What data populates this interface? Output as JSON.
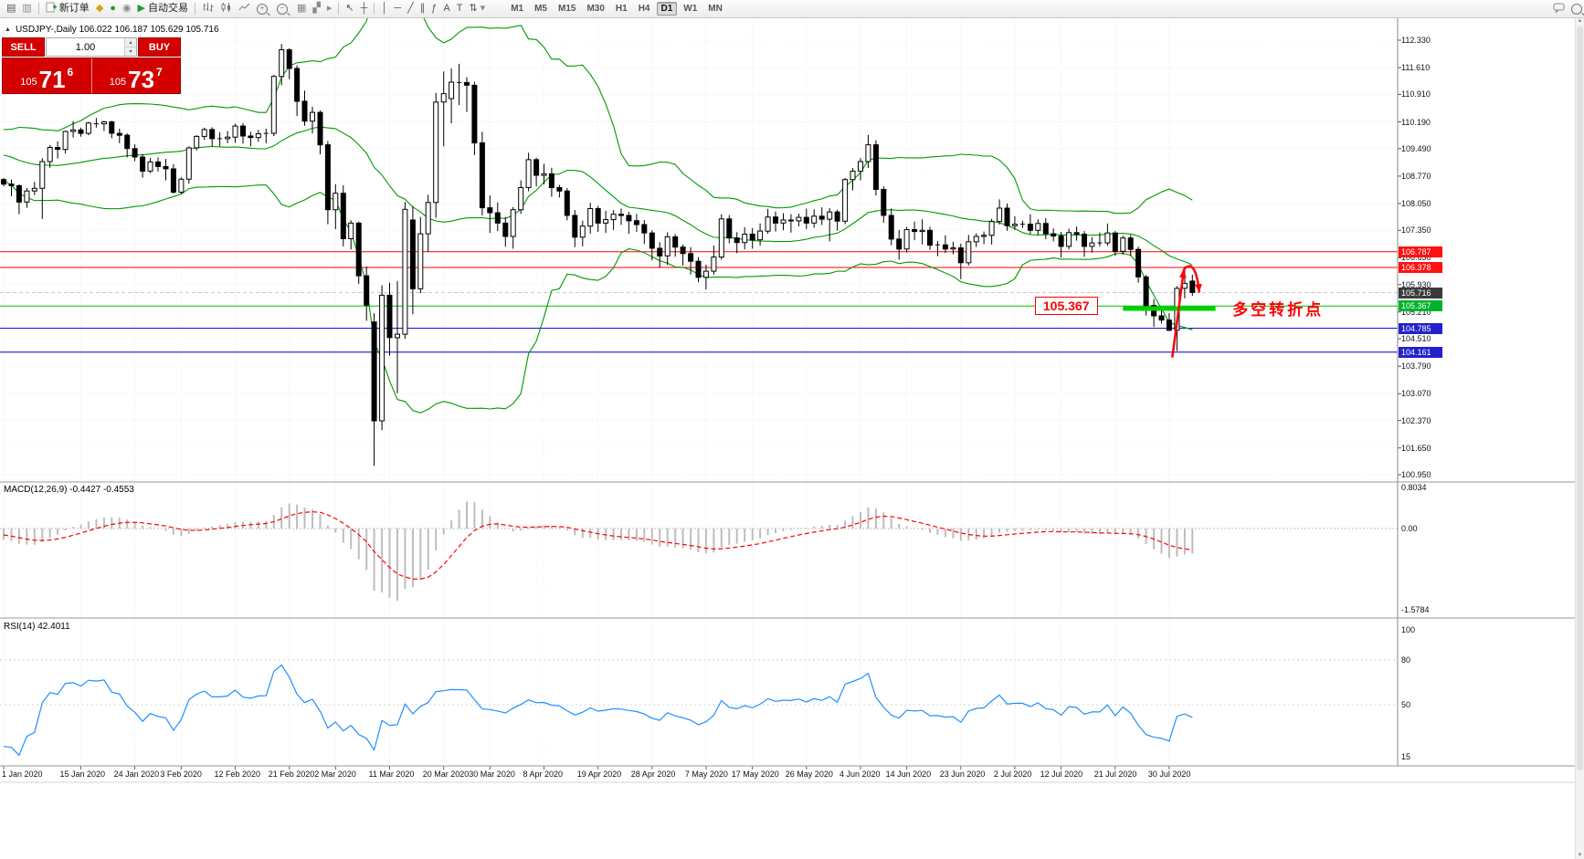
{
  "colors": {
    "bollinger": "#009900",
    "grid": "#ececec",
    "macd_hist": "#bdbdbd",
    "macd_signal": "#ff0000",
    "rsi_line": "#1e90ff",
    "panel_red": "#d40000",
    "down_candle": "#000000",
    "up_candle": "#ffffff"
  },
  "toolbar": {
    "new_order_label": "新订单",
    "auto_trading_label": "自动交易",
    "timeframes": [
      "M1",
      "M5",
      "M15",
      "M30",
      "H1",
      "H4",
      "D1",
      "W1",
      "MN"
    ],
    "active_timeframe": "D1",
    "icons": {
      "new_chart": "▤",
      "profiles": "▥",
      "metaeditor": "◆",
      "expert": "●",
      "terminal": "◉",
      "autoplay": "▶",
      "tile": "▦",
      "arrange": "▞",
      "shift": "▸",
      "cursor": "↖",
      "crosshair": "┼",
      "vline": "│",
      "hline": "─",
      "trendline": "╱",
      "channel": "∥",
      "fibonacci": "ƒ",
      "text": "A",
      "label": "T",
      "arrows": "⇅",
      "caret": "▾",
      "plus": "+",
      "minus": "−",
      "up_spin": "▴",
      "down_spin": "▾",
      "collapse": "▲",
      "scroll_up": "▲",
      "scroll_down": "▼"
    }
  },
  "chart": {
    "title": "USDJPY-,Daily 106.022 106.187 105.629 105.716",
    "trade_panel": {
      "sell_label": "SELL",
      "buy_label": "BUY",
      "volume": "1.00",
      "sell_small": "105",
      "sell_big": "71",
      "sell_sup": "6",
      "buy_small": "105",
      "buy_big": "73",
      "buy_sup": "7"
    },
    "y_ticks": [
      "112.330",
      "111.610",
      "110.910",
      "110.190",
      "109.490",
      "108.770",
      "108.050",
      "107.350",
      "106.630",
      "105.930",
      "105.210",
      "104.510",
      "103.790",
      "103.070",
      "102.370",
      "101.650",
      "100.950"
    ],
    "price_lines": [
      {
        "price": 106.787,
        "color": "#ff0000",
        "width": 1
      },
      {
        "price": 106.378,
        "color": "#ff0000",
        "width": 1
      },
      {
        "price": 105.367,
        "color": "#00c400",
        "width": 1
      },
      {
        "price": 104.785,
        "color": "#0000cc",
        "width": 1
      },
      {
        "price": 104.161,
        "color": "#0000cc",
        "width": 1
      }
    ],
    "current_price": 105.716,
    "price_tags": [
      {
        "text": "106.787",
        "bg": "#ff1111"
      },
      {
        "text": "106.378",
        "bg": "#ff1111"
      },
      {
        "text": "105.716",
        "bg": "#3b3b3b"
      },
      {
        "text": "105.367",
        "bg": "#00b32c"
      },
      {
        "text": "104.785",
        "bg": "#2222cc"
      },
      {
        "text": "104.161",
        "bg": "#2222cc"
      }
    ],
    "x_labels": [
      {
        "text": "1 Jan 2020",
        "i": 0
      },
      {
        "text": "15 Jan 2020",
        "i": 10
      },
      {
        "text": "24 Jan 2020",
        "i": 17
      },
      {
        "text": "3 Feb 2020",
        "i": 23
      },
      {
        "text": "12 Feb 2020",
        "i": 30
      },
      {
        "text": "21 Feb 2020",
        "i": 37
      },
      {
        "text": "2 Mar 2020",
        "i": 43
      },
      {
        "text": "11 Mar 2020",
        "i": 50
      },
      {
        "text": "20 Mar 2020",
        "i": 57
      },
      {
        "text": "30 Mar 2020",
        "i": 63
      },
      {
        "text": "8 Apr 2020",
        "i": 70
      },
      {
        "text": "19 Apr 2020",
        "i": 77
      },
      {
        "text": "28 Apr 2020",
        "i": 84
      },
      {
        "text": "7 May 2020",
        "i": 91
      },
      {
        "text": "17 May 2020",
        "i": 97
      },
      {
        "text": "26 May 2020",
        "i": 104
      },
      {
        "text": "4 Jun 2020",
        "i": 111
      },
      {
        "text": "14 Jun 2020",
        "i": 117
      },
      {
        "text": "23 Jun 2020",
        "i": 124
      },
      {
        "text": "2 Jul 2020",
        "i": 131
      },
      {
        "text": "12 Jul 2020",
        "i": 137
      },
      {
        "text": "21 Jul 2020",
        "i": 144
      },
      {
        "text": "30 Jul 2020",
        "i": 151
      }
    ],
    "annotations": {
      "price_box": "105.367",
      "note": "多空转折点",
      "box_anchor": [
        133.6,
        105.35
      ],
      "note_anchor": [
        159.2,
        105.35
      ],
      "thick_line": {
        "from_index": 145,
        "to_index": 157,
        "price": 105.3,
        "color": "#00d000"
      },
      "arrow": {
        "main": {
          "from": [
            151.4,
            104.02
          ],
          "to": [
            152.9,
            106.33
          ]
        },
        "hook": {
          "ctrl": [
            154.4,
            106.65
          ],
          "to": [
            154.9,
            105.72
          ]
        }
      }
    }
  },
  "macd": {
    "label": "MACD(12,26,9) -0.4427 -0.4553",
    "ticks": [
      {
        "text": "0.8034",
        "v": 0.8034
      },
      {
        "text": "0.00",
        "v": 0
      },
      {
        "text": "-1.5784",
        "v": -1.5784
      }
    ]
  },
  "rsi": {
    "label": "RSI(14) 42.4011",
    "ticks": [
      {
        "text": "100",
        "v": 100
      },
      {
        "text": "80",
        "v": 80
      },
      {
        "text": "50",
        "v": 50
      },
      {
        "text": "15",
        "v": 15
      }
    ],
    "levels": [
      80,
      50
    ]
  },
  "chart_data": {
    "type": "candlestick",
    "symbol": "USDJPY-",
    "timeframe": "Daily",
    "indicators": [
      "Bollinger Bands (20,2)",
      "MACD(12,26,9)",
      "RSI(14)"
    ],
    "seed_closes": [
      109.62,
      109.66,
      109.71,
      109.55,
      109.44,
      109.51,
      109.57,
      109.61,
      109.48,
      109.37,
      109.32,
      109.4,
      109.45,
      109.52,
      109.58,
      109.3,
      109.05,
      108.88,
      108.76,
      108.7
    ],
    "ohlc": [
      [
        108.68,
        108.72,
        108.5,
        108.56
      ],
      [
        108.56,
        108.68,
        108.24,
        108.52
      ],
      [
        108.52,
        108.55,
        107.77,
        108.09
      ],
      [
        108.09,
        108.46,
        107.94,
        108.38
      ],
      [
        108.38,
        108.62,
        108.27,
        108.45
      ],
      [
        108.45,
        109.24,
        107.65,
        109.15
      ],
      [
        109.15,
        109.58,
        108.99,
        109.52
      ],
      [
        109.52,
        109.68,
        109.23,
        109.47
      ],
      [
        109.47,
        109.96,
        109.36,
        109.94
      ],
      [
        109.94,
        110.21,
        109.78,
        109.98
      ],
      [
        109.98,
        110.04,
        109.8,
        109.89
      ],
      [
        109.89,
        110.19,
        109.84,
        110.16
      ],
      [
        110.16,
        110.29,
        110.04,
        110.14
      ],
      [
        110.14,
        110.22,
        109.95,
        110.19
      ],
      [
        110.19,
        110.22,
        109.76,
        109.89
      ],
      [
        109.89,
        110.01,
        109.63,
        109.84
      ],
      [
        109.84,
        109.89,
        109.26,
        109.49
      ],
      [
        109.49,
        109.6,
        109.16,
        109.27
      ],
      [
        109.27,
        109.35,
        108.73,
        108.9
      ],
      [
        108.9,
        109.24,
        108.85,
        109.14
      ],
      [
        109.14,
        109.26,
        108.89,
        109.02
      ],
      [
        109.02,
        109.22,
        108.66,
        108.96
      ],
      [
        108.96,
        109.08,
        108.31,
        108.35
      ],
      [
        108.35,
        108.74,
        108.3,
        108.69
      ],
      [
        108.69,
        109.55,
        108.57,
        109.51
      ],
      [
        109.51,
        109.84,
        109.44,
        109.81
      ],
      [
        109.81,
        110.04,
        109.72,
        109.99
      ],
      [
        109.99,
        110.05,
        109.54,
        109.75
      ],
      [
        109.75,
        109.92,
        109.55,
        109.75
      ],
      [
        109.75,
        109.95,
        109.63,
        109.79
      ],
      [
        109.79,
        110.14,
        109.64,
        110.08
      ],
      [
        110.08,
        110.16,
        109.62,
        109.82
      ],
      [
        109.82,
        109.93,
        109.55,
        109.78
      ],
      [
        109.78,
        109.98,
        109.67,
        109.88
      ],
      [
        109.88,
        110.01,
        109.63,
        109.89
      ],
      [
        109.89,
        111.42,
        109.82,
        111.38
      ],
      [
        111.38,
        112.23,
        111.15,
        112.08
      ],
      [
        112.08,
        112.12,
        111.31,
        111.59
      ],
      [
        111.59,
        111.67,
        110.34,
        110.73
      ],
      [
        110.73,
        111.01,
        110.09,
        110.21
      ],
      [
        110.21,
        110.59,
        109.89,
        110.44
      ],
      [
        110.44,
        110.49,
        109.34,
        109.59
      ],
      [
        109.59,
        109.69,
        107.51,
        107.89
      ],
      [
        107.89,
        108.56,
        107.38,
        108.32
      ],
      [
        108.32,
        108.53,
        106.93,
        107.13
      ],
      [
        107.13,
        107.61,
        106.85,
        107.54
      ],
      [
        107.54,
        107.58,
        105.95,
        106.16
      ],
      [
        106.16,
        106.4,
        104.98,
        105.39
      ],
      [
        104.95,
        105.18,
        101.18,
        102.36
      ],
      [
        102.36,
        105.91,
        102.12,
        105.65
      ],
      [
        105.65,
        105.98,
        104.07,
        104.54
      ],
      [
        104.54,
        106.02,
        103.08,
        104.63
      ],
      [
        104.63,
        108.09,
        104.51,
        107.9
      ],
      [
        107.62,
        107.98,
        105.15,
        105.82
      ],
      [
        105.82,
        107.7,
        105.7,
        107.26
      ],
      [
        107.26,
        108.28,
        106.78,
        108.08
      ],
      [
        108.08,
        110.95,
        107.68,
        110.71
      ],
      [
        110.71,
        111.51,
        109.55,
        110.93
      ],
      [
        110.8,
        111.59,
        110.15,
        111.23
      ],
      [
        111.23,
        111.71,
        110.63,
        111.22
      ],
      [
        111.22,
        111.36,
        110.45,
        111.15
      ],
      [
        111.15,
        111.24,
        109.32,
        109.64
      ],
      [
        109.64,
        109.93,
        107.74,
        107.94
      ],
      [
        107.94,
        108.26,
        107.28,
        107.81
      ],
      [
        107.81,
        108.08,
        107.33,
        107.54
      ],
      [
        107.54,
        107.7,
        106.92,
        107.19
      ],
      [
        107.19,
        107.96,
        106.87,
        107.89
      ],
      [
        107.89,
        108.66,
        107.78,
        108.47
      ],
      [
        108.47,
        109.38,
        108.37,
        109.2
      ],
      [
        109.2,
        109.25,
        108.5,
        108.79
      ],
      [
        108.79,
        109.09,
        108.55,
        108.83
      ],
      [
        108.83,
        108.99,
        108.23,
        108.47
      ],
      [
        108.47,
        108.54,
        108.21,
        108.38
      ],
      [
        108.38,
        108.46,
        107.61,
        107.74
      ],
      [
        107.74,
        107.88,
        106.91,
        107.17
      ],
      [
        107.17,
        107.6,
        106.93,
        107.46
      ],
      [
        107.46,
        108.07,
        107.26,
        107.92
      ],
      [
        107.92,
        107.99,
        107.31,
        107.54
      ],
      [
        107.54,
        107.86,
        107.28,
        107.63
      ],
      [
        107.63,
        107.88,
        107.36,
        107.77
      ],
      [
        107.77,
        107.92,
        107.49,
        107.74
      ],
      [
        107.74,
        107.83,
        107.26,
        107.6
      ],
      [
        107.6,
        107.78,
        107.31,
        107.5
      ],
      [
        107.5,
        107.62,
        106.99,
        107.28
      ],
      [
        107.28,
        107.35,
        106.56,
        106.88
      ],
      [
        106.88,
        107.04,
        106.37,
        106.68
      ],
      [
        106.68,
        107.3,
        106.44,
        107.18
      ],
      [
        107.18,
        107.25,
        106.66,
        106.91
      ],
      [
        106.91,
        106.98,
        106.43,
        106.74
      ],
      [
        106.74,
        106.91,
        106.19,
        106.54
      ],
      [
        106.54,
        106.65,
        105.99,
        106.12
      ],
      [
        106.12,
        106.45,
        105.8,
        106.28
      ],
      [
        106.28,
        106.95,
        106.19,
        106.65
      ],
      [
        106.65,
        107.77,
        106.58,
        107.65
      ],
      [
        107.65,
        107.75,
        107.01,
        107.15
      ],
      [
        107.15,
        107.3,
        106.75,
        107.03
      ],
      [
        107.03,
        107.43,
        106.85,
        107.25
      ],
      [
        107.25,
        107.41,
        106.87,
        107.1
      ],
      [
        107.1,
        107.53,
        106.95,
        107.33
      ],
      [
        107.33,
        107.91,
        107.26,
        107.7
      ],
      [
        107.7,
        107.84,
        107.32,
        107.54
      ],
      [
        107.54,
        107.8,
        107.35,
        107.62
      ],
      [
        107.62,
        107.77,
        107.29,
        107.6
      ],
      [
        107.6,
        107.79,
        107.45,
        107.69
      ],
      [
        107.69,
        107.92,
        107.38,
        107.54
      ],
      [
        107.54,
        107.9,
        107.42,
        107.72
      ],
      [
        107.72,
        107.95,
        107.49,
        107.64
      ],
      [
        107.64,
        107.93,
        107.06,
        107.83
      ],
      [
        107.83,
        107.89,
        107.34,
        107.59
      ],
      [
        107.59,
        108.72,
        107.51,
        108.68
      ],
      [
        108.68,
        108.98,
        108.4,
        108.9
      ],
      [
        108.9,
        109.24,
        108.66,
        109.15
      ],
      [
        109.15,
        109.85,
        108.98,
        109.59
      ],
      [
        109.59,
        109.71,
        108.26,
        108.42
      ],
      [
        108.42,
        108.5,
        107.55,
        107.74
      ],
      [
        107.74,
        107.92,
        106.96,
        107.12
      ],
      [
        107.12,
        107.36,
        106.58,
        106.86
      ],
      [
        106.86,
        107.44,
        106.77,
        107.37
      ],
      [
        107.37,
        107.58,
        107.09,
        107.32
      ],
      [
        107.32,
        107.64,
        106.98,
        107.35
      ],
      [
        107.35,
        107.44,
        106.84,
        106.96
      ],
      [
        106.96,
        107.07,
        106.67,
        106.97
      ],
      [
        106.97,
        107.22,
        106.76,
        106.86
      ],
      [
        106.86,
        107.05,
        106.72,
        106.89
      ],
      [
        106.89,
        107.0,
        106.07,
        106.5
      ],
      [
        106.5,
        107.23,
        106.43,
        107.05
      ],
      [
        107.05,
        107.27,
        106.91,
        107.19
      ],
      [
        107.19,
        107.32,
        106.99,
        107.22
      ],
      [
        107.22,
        107.65,
        106.98,
        107.58
      ],
      [
        107.58,
        108.16,
        107.5,
        107.93
      ],
      [
        107.93,
        108.05,
        107.34,
        107.47
      ],
      [
        107.47,
        107.72,
        107.36,
        107.51
      ],
      [
        107.51,
        107.6,
        107.41,
        107.51
      ],
      [
        107.51,
        107.77,
        107.25,
        107.35
      ],
      [
        107.35,
        107.64,
        107.23,
        107.53
      ],
      [
        107.53,
        107.67,
        107.12,
        107.26
      ],
      [
        107.26,
        107.4,
        107.06,
        107.2
      ],
      [
        107.2,
        107.31,
        106.64,
        106.93
      ],
      [
        106.93,
        107.39,
        106.85,
        107.29
      ],
      [
        107.29,
        107.45,
        107.08,
        107.25
      ],
      [
        107.25,
        107.33,
        106.66,
        106.93
      ],
      [
        106.93,
        107.17,
        106.77,
        107.02
      ],
      [
        107.02,
        107.29,
        106.93,
        107.02
      ],
      [
        107.02,
        107.53,
        106.94,
        107.28
      ],
      [
        107.28,
        107.33,
        106.68,
        106.8
      ],
      [
        106.8,
        107.21,
        106.71,
        107.15
      ],
      [
        107.15,
        107.23,
        106.68,
        106.85
      ],
      [
        106.85,
        106.92,
        105.98,
        106.13
      ],
      [
        106.13,
        106.18,
        105.12,
        105.38
      ],
      [
        105.38,
        105.55,
        104.82,
        105.11
      ],
      [
        105.11,
        105.32,
        104.91,
        105.0
      ],
      [
        105.0,
        105.18,
        104.72,
        104.73
      ],
      [
        104.73,
        105.89,
        104.19,
        105.83
      ],
      [
        105.83,
        106.4,
        105.57,
        105.96
      ],
      [
        106.02,
        106.19,
        105.63,
        105.72
      ]
    ]
  }
}
